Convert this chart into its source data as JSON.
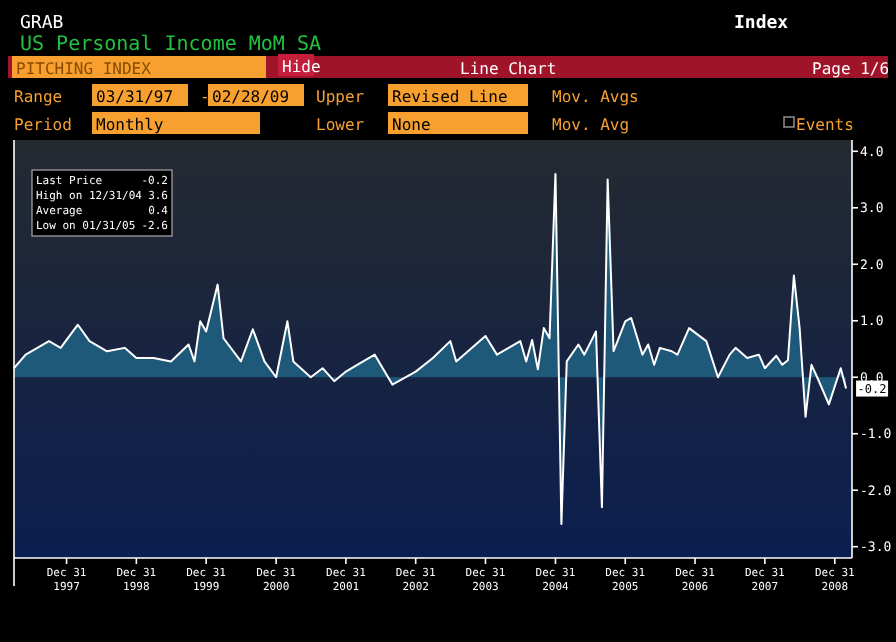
{
  "chart_data": {
    "type": "area",
    "title": "US Personal Income MoM SA",
    "annotations": [
      "GRAB",
      "Index",
      "PITCHING INDEX",
      "Hide",
      "Line Chart",
      "Page 1/6",
      "Range",
      "03/31/97",
      "-",
      "02/28/09",
      "Upper",
      "Revised Line",
      "Mov. Avgs",
      "Period",
      "Monthly",
      "Lower",
      "None",
      "Mov. Avg",
      "Events",
      "Last Price",
      "-0.2",
      "High on 12/31/04",
      "3.6",
      "Average",
      "0.4",
      "Low on 01/31/05",
      "-2.6",
      {
        "text": "-0.2",
        "x": "2009-02-28",
        "y": -0.2
      }
    ],
    "x": [
      "1997-03-31",
      "1997-05-31",
      "1997-09-30",
      "1997-11-30",
      "1998-02-28",
      "1998-04-30",
      "1998-07-31",
      "1998-10-31",
      "1998-12-31",
      "1999-03-31",
      "1999-06-30",
      "1999-09-30",
      "1999-10-31",
      "1999-11-30",
      "1999-12-31",
      "2000-02-29",
      "2000-03-31",
      "2000-06-30",
      "2000-08-31",
      "2000-10-31",
      "2000-12-31",
      "2001-02-28",
      "2001-03-31",
      "2001-06-30",
      "2001-08-31",
      "2001-10-31",
      "2001-12-31",
      "2002-02-28",
      "2002-05-31",
      "2002-08-31",
      "2002-12-31",
      "2003-03-31",
      "2003-06-30",
      "2003-07-31",
      "2003-12-31",
      "2004-02-29",
      "2004-04-30",
      "2004-06-30",
      "2004-07-31",
      "2004-08-31",
      "2004-09-30",
      "2004-10-31",
      "2004-11-30",
      "2004-12-31",
      "2005-01-31",
      "2005-02-28",
      "2005-04-30",
      "2005-05-31",
      "2005-07-31",
      "2005-08-31",
      "2005-09-30",
      "2005-10-31",
      "2005-12-31",
      "2006-01-31",
      "2006-03-31",
      "2006-04-30",
      "2006-05-31",
      "2006-06-30",
      "2006-08-31",
      "2006-09-30",
      "2006-11-30",
      "2007-02-28",
      "2007-04-30",
      "2007-06-30",
      "2007-07-31",
      "2007-09-30",
      "2007-11-30",
      "2007-12-31",
      "2008-02-29",
      "2008-03-31",
      "2008-04-30",
      "2008-05-31",
      "2008-06-30",
      "2008-07-31",
      "2008-08-31",
      "2008-09-30",
      "2008-11-30",
      "2009-01-31",
      "2009-02-28"
    ],
    "series": [
      {
        "color": "#1f5f80",
        "values": [
          0.16,
          0.4,
          0.64,
          0.52,
          0.93,
          0.64,
          0.46,
          0.52,
          0.34,
          0.34,
          0.28,
          0.58,
          0.28,
          0.99,
          0.81,
          1.64,
          0.69,
          0.28,
          0.85,
          0.28,
          0,
          0.99,
          0.28,
          0,
          0.16,
          -0.07,
          0.1,
          0.22,
          0.4,
          -0.13,
          0.1,
          0.34,
          0.64,
          0.28,
          0.73,
          0.4,
          0.52,
          0.64,
          0.28,
          0.66,
          0.14,
          0.87,
          0.69,
          3.6,
          -2.6,
          0.28,
          0.58,
          0.4,
          0.81,
          -2.3,
          3.5,
          0.46,
          0.99,
          1.05,
          0.4,
          0.58,
          0.22,
          0.52,
          0.46,
          0.4,
          0.87,
          0.64,
          0,
          0.4,
          0.52,
          0.34,
          0.4,
          0.16,
          0.38,
          0.22,
          0.3,
          1.8,
          0.87,
          -0.7,
          0.22,
          0,
          -0.48,
          0.16,
          -0.2
        ]
      }
    ],
    "xlim": [
      "1997-03-31",
      "2009-03-31"
    ],
    "xticks": [
      {
        "value": "1997-12-31",
        "label": "Dec 31\n1997"
      },
      {
        "value": "1998-12-31",
        "label": "Dec 31\n1998"
      },
      {
        "value": "1999-12-31",
        "label": "Dec 31\n1999"
      },
      {
        "value": "2000-12-31",
        "label": "Dec 31\n2000"
      },
      {
        "value": "2001-12-31",
        "label": "Dec 31\n2001"
      },
      {
        "value": "2002-12-31",
        "label": "Dec 31\n2002"
      },
      {
        "value": "2003-12-31",
        "label": "Dec 31\n2003"
      },
      {
        "value": "2004-12-31",
        "label": "Dec 31\n2004"
      },
      {
        "value": "2005-12-31",
        "label": "Dec 31\n2005"
      },
      {
        "value": "2006-12-31",
        "label": "Dec 31\n2006"
      },
      {
        "value": "2007-12-31",
        "label": "Dec 31\n2007"
      },
      {
        "value": "2008-12-31",
        "label": "Dec 31\n2008"
      }
    ],
    "ylim": [
      -3.2,
      4.2
    ],
    "yticks": [
      {
        "value": -3,
        "label": "-3.0"
      },
      {
        "value": -2,
        "label": "-2.0"
      },
      {
        "value": -1,
        "label": "-1.0"
      },
      {
        "value": 0,
        "label": "0.0"
      },
      {
        "value": 1,
        "label": "1.0"
      },
      {
        "value": 2,
        "label": "2.0"
      },
      {
        "value": 3,
        "label": "3.0"
      },
      {
        "value": 4,
        "label": "4.0"
      }
    ]
  }
}
